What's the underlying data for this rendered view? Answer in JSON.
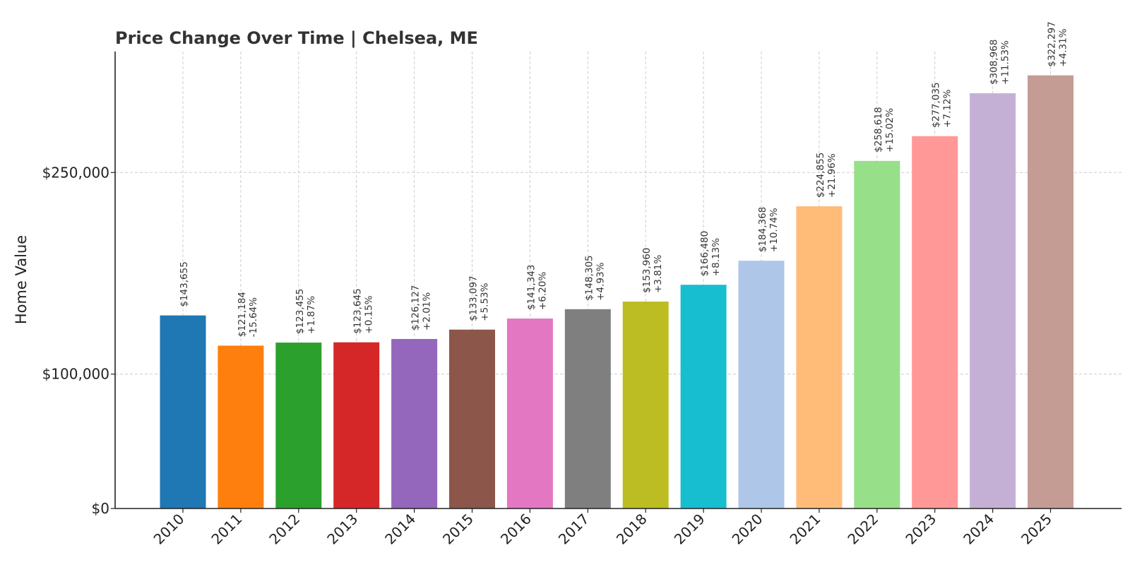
{
  "chart_data": {
    "type": "bar",
    "title": "Price Change Over Time | Chelsea, ME",
    "xlabel": "",
    "ylabel": "Home Value",
    "categories": [
      "2010",
      "2011",
      "2012",
      "2013",
      "2014",
      "2015",
      "2016",
      "2017",
      "2018",
      "2019",
      "2020",
      "2021",
      "2022",
      "2023",
      "2024",
      "2025"
    ],
    "values": [
      143655,
      121184,
      123455,
      123645,
      126127,
      133097,
      141343,
      148305,
      153960,
      166480,
      184368,
      224855,
      258618,
      277035,
      308968,
      322297
    ],
    "value_labels": [
      "$143,655",
      "$121,184",
      "$123,455",
      "$123,645",
      "$126,127",
      "$133,097",
      "$141,343",
      "$148,305",
      "$153,960",
      "$166,480",
      "$184,368",
      "$224,855",
      "$258,618",
      "$277,035",
      "$308,968",
      "$322,297"
    ],
    "change_labels": [
      "",
      "-15.64%",
      "+1.87%",
      "+0.15%",
      "+2.01%",
      "+5.53%",
      "+6.20%",
      "+4.93%",
      "+3.81%",
      "+8.13%",
      "+10.74%",
      "+21.96%",
      "+15.02%",
      "+7.12%",
      "+11.53%",
      "+4.31%"
    ],
    "colors": [
      "#1f77b4",
      "#ff7f0e",
      "#2ca02c",
      "#d62728",
      "#9467bd",
      "#8c564b",
      "#e377c2",
      "#7f7f7f",
      "#bcbd22",
      "#17becf",
      "#aec7e8",
      "#ffbb78",
      "#98df8a",
      "#ff9896",
      "#c5b0d5",
      "#c49c94"
    ],
    "yticks": [
      0,
      100000,
      250000
    ],
    "ytick_labels": [
      "$0",
      "$100,000",
      "$250,000"
    ],
    "ylim": [
      0,
      340000
    ],
    "grid": true
  }
}
